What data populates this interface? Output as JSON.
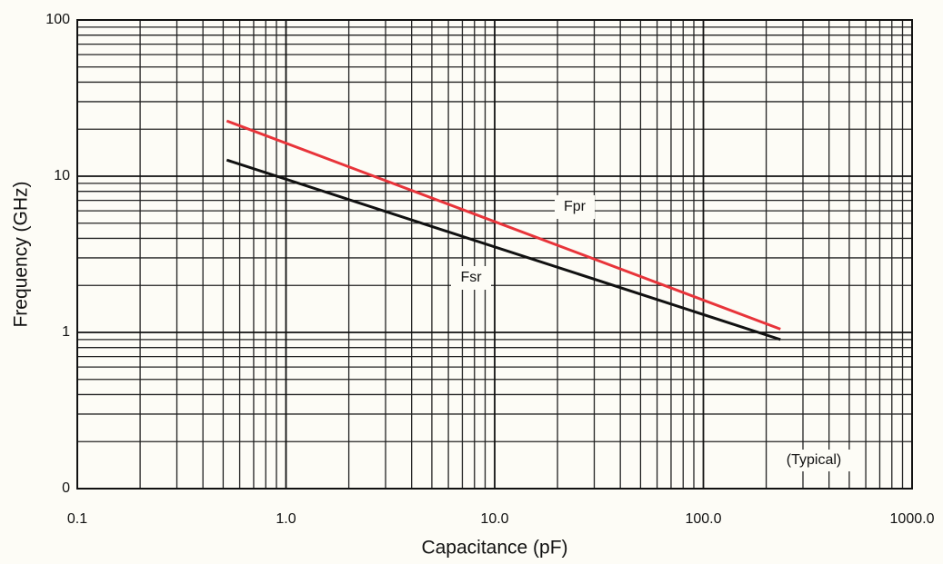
{
  "chart_data": {
    "type": "line",
    "x_label": "Capacitance (pF)",
    "y_label": "Frequency (GHz)",
    "x_scale": "log",
    "y_scale": "log",
    "grid": true,
    "xlim": [
      0.1,
      1000
    ],
    "ylim": [
      0.1,
      100
    ],
    "xticks": [
      0.1,
      {
        "value": 1,
        "label": "1.0"
      },
      {
        "value": 10,
        "label": "10.0"
      },
      {
        "value": 100,
        "label": "100.0"
      },
      {
        "value": 1000,
        "label": "1000.0"
      }
    ],
    "yticks": [
      {
        "value": 0.1,
        "label": "0"
      },
      1,
      10,
      100
    ],
    "series": [
      {
        "name": "Fpr",
        "color": "#e8343a",
        "x": [
          0.52,
          234
        ],
        "values": [
          22.6,
          1.05
        ]
      },
      {
        "name": "Fsr",
        "color": "#111111",
        "x": [
          0.52,
          234
        ],
        "values": [
          12.7,
          0.9
        ]
      }
    ],
    "annotations": [
      "(Typical)"
    ]
  }
}
